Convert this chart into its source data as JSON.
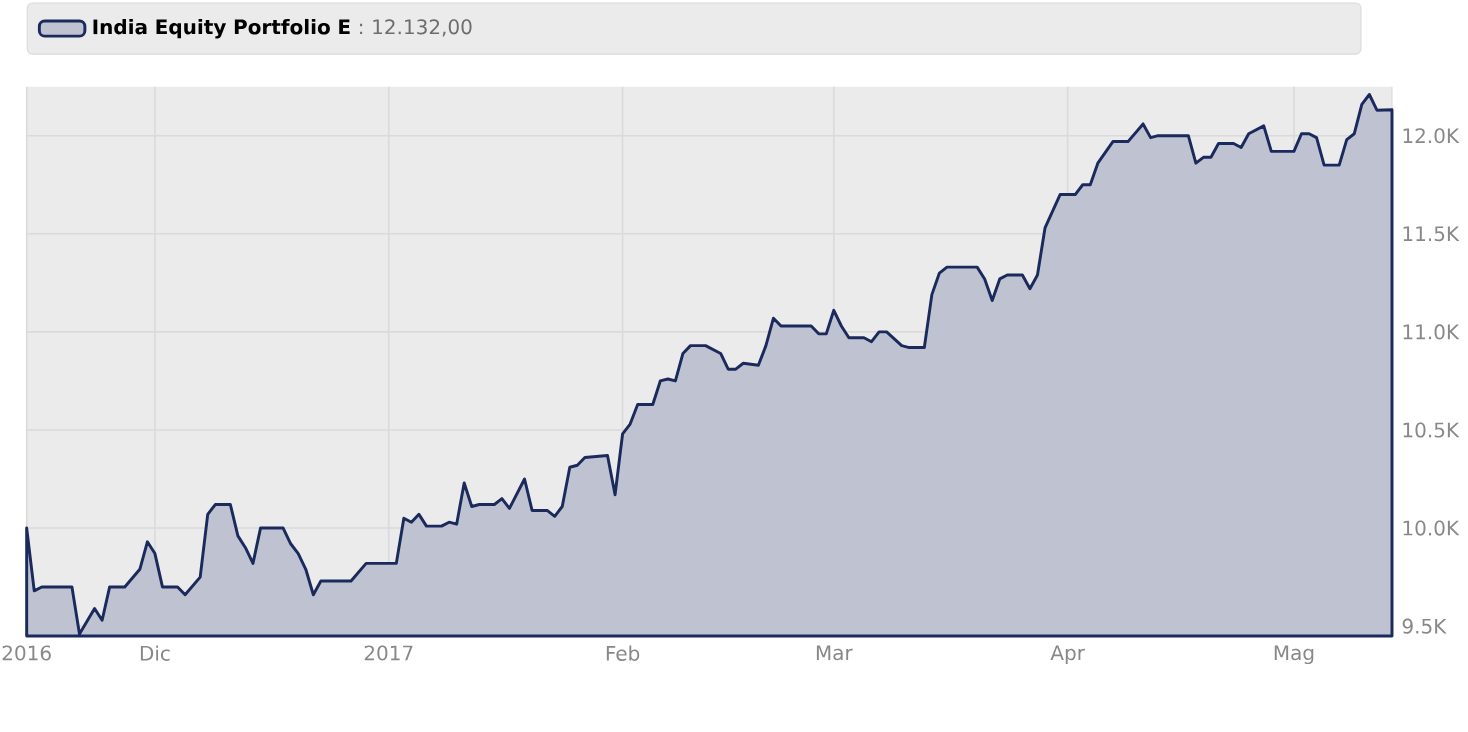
{
  "chart_data": {
    "type": "area",
    "series": [
      {
        "name": "India Equity Portfolio E",
        "color": "#1b2a5c",
        "x": [
          "2016-11-14",
          "2016-11-15",
          "2016-11-16",
          "2016-11-20",
          "2016-11-21",
          "2016-11-23",
          "2016-11-24",
          "2016-11-25",
          "2016-11-27",
          "2016-11-29",
          "2016-11-30",
          "2016-12-01",
          "2016-12-02",
          "2016-12-04",
          "2016-12-05",
          "2016-12-07",
          "2016-12-08",
          "2016-12-09",
          "2016-12-11",
          "2016-12-12",
          "2016-12-13",
          "2016-12-14",
          "2016-12-15",
          "2016-12-18",
          "2016-12-19",
          "2016-12-20",
          "2016-12-21",
          "2016-12-22",
          "2016-12-23",
          "2016-12-27",
          "2016-12-29",
          "2017-01-02",
          "2017-01-03",
          "2017-01-04",
          "2017-01-05",
          "2017-01-06",
          "2017-01-08",
          "2017-01-09",
          "2017-01-10",
          "2017-01-11",
          "2017-01-12",
          "2017-01-13",
          "2017-01-15",
          "2017-01-16",
          "2017-01-17",
          "2017-01-19",
          "2017-01-20",
          "2017-01-22",
          "2017-01-23",
          "2017-01-24",
          "2017-01-25",
          "2017-01-26",
          "2017-01-27",
          "2017-01-30",
          "2017-01-31",
          "2017-02-01",
          "2017-02-02",
          "2017-02-03",
          "2017-02-05",
          "2017-02-06",
          "2017-02-07",
          "2017-02-08",
          "2017-02-09",
          "2017-02-10",
          "2017-02-12",
          "2017-02-14",
          "2017-02-15",
          "2017-02-16",
          "2017-02-17",
          "2017-02-19",
          "2017-02-20",
          "2017-02-21",
          "2017-02-22",
          "2017-02-26",
          "2017-02-27",
          "2017-02-28",
          "2017-03-01",
          "2017-03-02",
          "2017-03-03",
          "2017-03-05",
          "2017-03-06",
          "2017-03-07",
          "2017-03-08",
          "2017-03-10",
          "2017-03-11",
          "2017-03-13",
          "2017-03-14",
          "2017-03-15",
          "2017-03-16",
          "2017-03-20",
          "2017-03-21",
          "2017-03-22",
          "2017-03-23",
          "2017-03-24",
          "2017-03-26",
          "2017-03-27",
          "2017-03-28",
          "2017-03-29",
          "2017-03-31",
          "2017-04-02",
          "2017-04-03",
          "2017-04-04",
          "2017-04-05",
          "2017-04-07",
          "2017-04-09",
          "2017-04-11",
          "2017-04-12",
          "2017-04-13",
          "2017-04-17",
          "2017-04-18",
          "2017-04-19",
          "2017-04-20",
          "2017-04-21",
          "2017-04-23",
          "2017-04-24",
          "2017-04-25",
          "2017-04-27",
          "2017-04-28",
          "2017-05-01",
          "2017-05-02",
          "2017-05-03",
          "2017-05-04",
          "2017-05-05",
          "2017-05-07",
          "2017-05-08",
          "2017-05-09",
          "2017-05-10",
          "2017-05-11",
          "2017-05-12",
          "2017-05-14"
        ],
        "values": [
          10000,
          9680,
          9700,
          9700,
          9460,
          9590,
          9530,
          9700,
          9700,
          9790,
          9930,
          9870,
          9700,
          9700,
          9660,
          9750,
          10070,
          10120,
          10120,
          9960,
          9900,
          9820,
          10000,
          10000,
          9920,
          9870,
          9790,
          9660,
          9730,
          9730,
          9820,
          9820,
          10050,
          10030,
          10070,
          10010,
          10010,
          10030,
          10020,
          10230,
          10110,
          10120,
          10120,
          10150,
          10100,
          10250,
          10090,
          10090,
          10060,
          10110,
          10310,
          10320,
          10360,
          10370,
          10170,
          10480,
          10530,
          10630,
          10630,
          10750,
          10760,
          10750,
          10890,
          10930,
          10930,
          10890,
          10810,
          10810,
          10840,
          10830,
          10930,
          11070,
          11030,
          11030,
          10990,
          10990,
          11110,
          11030,
          10970,
          10970,
          10950,
          11000,
          11000,
          10930,
          10920,
          10920,
          11190,
          11300,
          11330,
          11330,
          11270,
          11160,
          11270,
          11290,
          11290,
          11220,
          11290,
          11530,
          11700,
          11700,
          11750,
          11750,
          11860,
          11970,
          11970,
          12060,
          11990,
          12000,
          12000,
          11860,
          11890,
          11890,
          11960,
          11960,
          11940,
          12010,
          12050,
          11920,
          11920,
          12010,
          12010,
          11990,
          11850,
          11850,
          11980,
          12010,
          12160,
          12210,
          12130,
          12132
        ]
      }
    ],
    "annotations": [
      ": 12.132,00"
    ],
    "xlim": [
      "2016-11-14",
      "2017-05-14"
    ],
    "xticks": [
      {
        "value": "2016-11-14",
        "label": "2016"
      },
      {
        "value": "2016-12-01",
        "label": "Dic"
      },
      {
        "value": "2017-01-01",
        "label": "2017"
      },
      {
        "value": "2017-02-01",
        "label": "Feb"
      },
      {
        "value": "2017-03-01",
        "label": "Mar"
      },
      {
        "value": "2017-04-01",
        "label": "Apr"
      },
      {
        "value": "2017-05-01",
        "label": "Mag"
      }
    ],
    "ylim": [
      9450,
      12250
    ],
    "yticks": [
      {
        "value": 9500,
        "label": "9.5K"
      },
      {
        "value": 10000,
        "label": "10.0K"
      },
      {
        "value": 10500,
        "label": "10.5K"
      },
      {
        "value": 11000,
        "label": "11.0K"
      },
      {
        "value": 11500,
        "label": "11.5K"
      },
      {
        "value": 12000,
        "label": "12.0K"
      }
    ],
    "grid": true,
    "legend": "top"
  }
}
